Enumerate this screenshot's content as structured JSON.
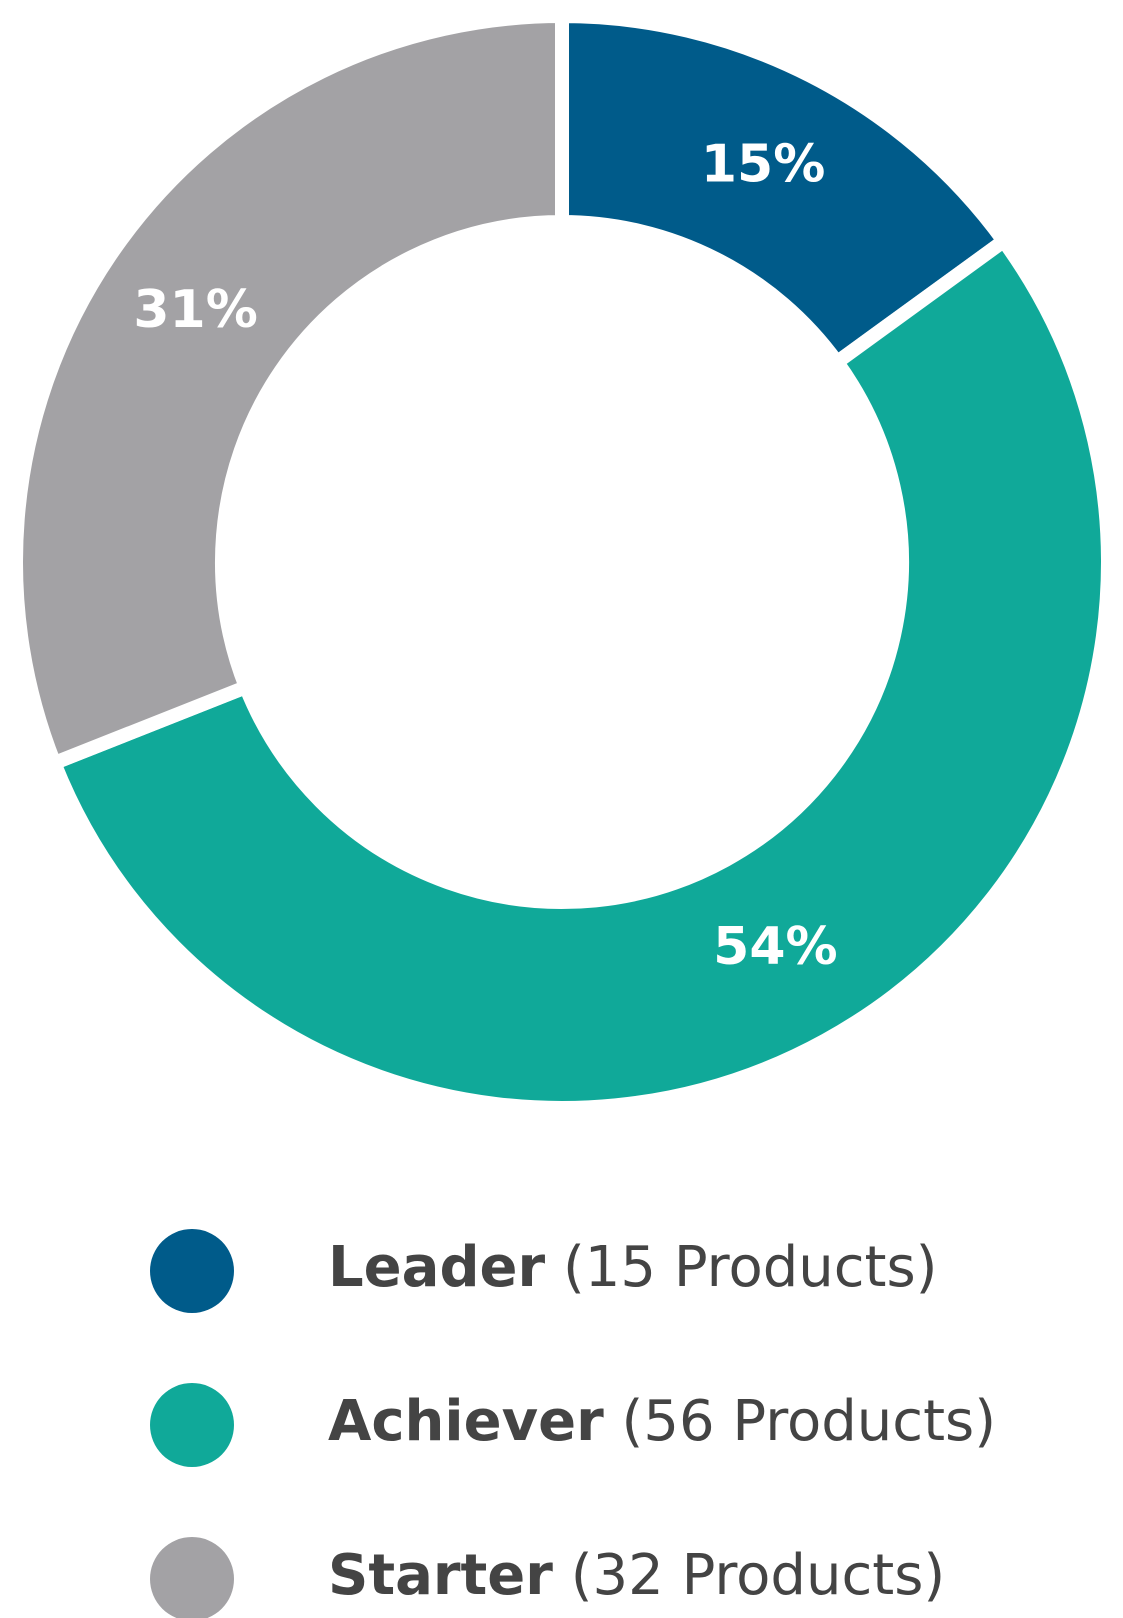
{
  "chart_data": {
    "type": "pie",
    "categories": [
      "Leader",
      "Achiever",
      "Starter"
    ],
    "values": [
      15,
      54,
      31
    ],
    "value_labels": [
      "15%",
      "54%",
      "31%"
    ],
    "legend_details": [
      "(15 Products)",
      "(56 Products)",
      "(32 Products)"
    ],
    "colors": [
      "#005b8a",
      "#10a999",
      "#a3a2a5"
    ]
  }
}
